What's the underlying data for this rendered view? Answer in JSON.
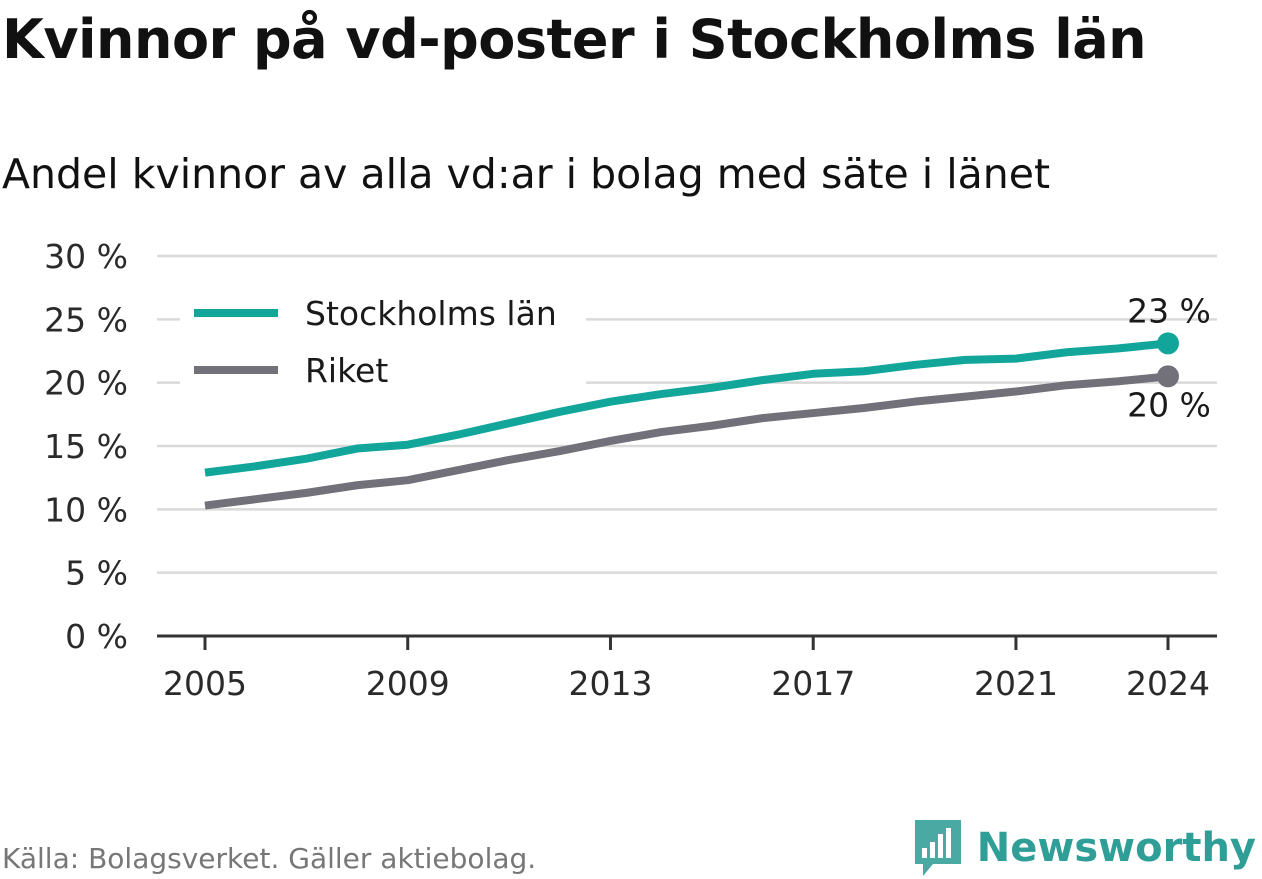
{
  "header": {
    "title": "Kvinnor på vd-poster i Stockholms län",
    "subtitle": "Andel kvinnor av alla vd:ar i bolag med säte i länet"
  },
  "footer": {
    "source": "Källa: Bolagsverket. Gäller aktiebolag.",
    "brand": "Newsworthy",
    "brand_icon": "bar-chart-speech-bubble-icon"
  },
  "colors": {
    "stockholm": "#12a69b",
    "riket": "#727079",
    "grid": "#d9d9d9",
    "axis": "#333333",
    "brand": "#2f9e97"
  },
  "chart_data": {
    "type": "line",
    "title": "Kvinnor på vd-poster i Stockholms län",
    "subtitle": "Andel kvinnor av alla vd:ar i bolag med säte i länet",
    "xlabel": "",
    "ylabel": "",
    "x": [
      2005,
      2006,
      2007,
      2008,
      2009,
      2010,
      2011,
      2012,
      2013,
      2014,
      2015,
      2016,
      2017,
      2018,
      2019,
      2020,
      2021,
      2022,
      2023,
      2024
    ],
    "x_ticks": [
      "2005",
      "2009",
      "2013",
      "2017",
      "2021",
      "2024"
    ],
    "y_ticks": [
      "0 %",
      "5 %",
      "10 %",
      "15 %",
      "20 %",
      "25 %",
      "30 %"
    ],
    "ylim": [
      0,
      30
    ],
    "grid": true,
    "legend_position": "top-left",
    "series": [
      {
        "name": "Stockholms län",
        "color": "#12a69b",
        "values": [
          12.9,
          13.4,
          14.0,
          14.8,
          15.1,
          15.9,
          16.8,
          17.7,
          18.5,
          19.1,
          19.6,
          20.2,
          20.7,
          20.9,
          21.4,
          21.8,
          21.9,
          22.4,
          22.7,
          23.1
        ],
        "end_label": "23 %"
      },
      {
        "name": "Riket",
        "color": "#727079",
        "values": [
          10.3,
          10.8,
          11.3,
          11.9,
          12.3,
          13.1,
          13.9,
          14.6,
          15.4,
          16.1,
          16.6,
          17.2,
          17.6,
          18.0,
          18.5,
          18.9,
          19.3,
          19.8,
          20.1,
          20.5
        ],
        "end_label": "20 %"
      }
    ]
  }
}
